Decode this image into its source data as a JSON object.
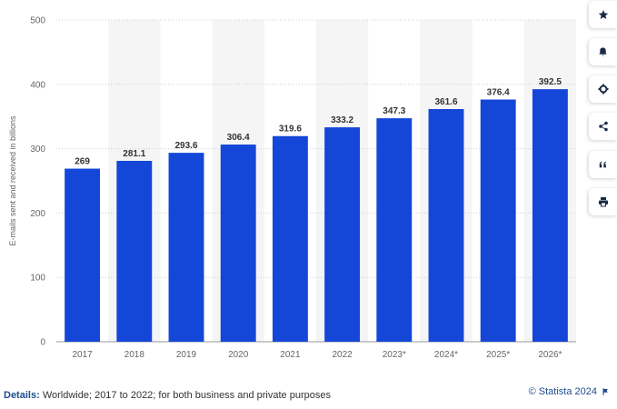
{
  "chart_data": {
    "type": "bar",
    "categories": [
      "2017",
      "2018",
      "2019",
      "2020",
      "2021",
      "2022",
      "2023*",
      "2024*",
      "2025*",
      "2026*"
    ],
    "values": [
      269,
      281.1,
      293.6,
      306.4,
      319.6,
      333.2,
      347.3,
      361.6,
      376.4,
      392.5
    ],
    "value_labels": [
      "269",
      "281.1",
      "293.6",
      "306.4",
      "319.6",
      "333.2",
      "347.3",
      "361.6",
      "376.4",
      "392.5"
    ],
    "ylabel": "E-mails sent and received in billions",
    "xlabel": "",
    "ylim": [
      0,
      500
    ],
    "yticks": [
      0,
      100,
      200,
      300,
      400,
      500
    ],
    "grid": true,
    "bar_color": "#1447d8",
    "alt_band_color": "#f5f5f5"
  },
  "toolbar": {
    "buttons": [
      {
        "name": "star-button",
        "icon": "star-icon"
      },
      {
        "name": "notification-button",
        "icon": "bell-icon"
      },
      {
        "name": "settings-button",
        "icon": "gear-icon"
      },
      {
        "name": "share-button",
        "icon": "share-icon"
      },
      {
        "name": "cite-button",
        "icon": "quote-icon"
      },
      {
        "name": "print-button",
        "icon": "printer-icon"
      }
    ]
  },
  "footer": {
    "details_label": "Details:",
    "details_text": "Worldwide; 2017 to 2022; for both business and private purposes",
    "credit": "© Statista 2024",
    "credit_icon": "flag-icon"
  },
  "colors": {
    "accent": "#1e4b8f",
    "bar": "#1447d8"
  }
}
